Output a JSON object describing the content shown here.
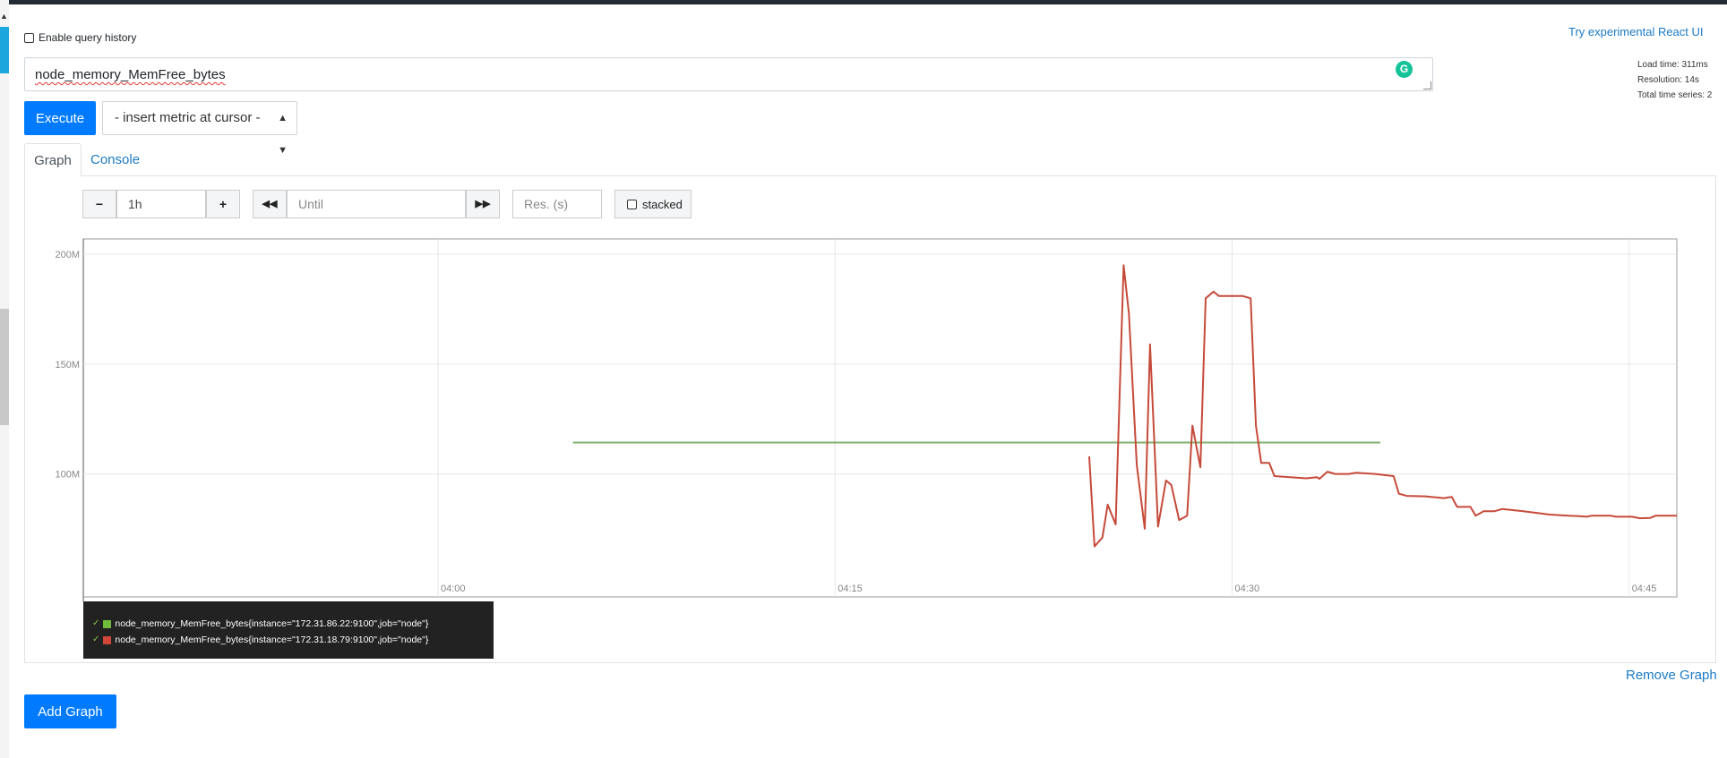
{
  "query_history": {
    "label": "Enable query history",
    "checked": false
  },
  "react_ui_link": "Try experimental React UI",
  "stats": {
    "load_time": "Load time: 311ms",
    "resolution": "Resolution: 14s",
    "total_series": "Total time series: 2"
  },
  "query": {
    "expression": "node_memory_MemFree_bytes"
  },
  "execute_label": "Execute",
  "metric_select": {
    "selected": "- insert metric at cursor -"
  },
  "tabs": [
    {
      "label": "Graph",
      "active": true
    },
    {
      "label": "Console",
      "active": false
    }
  ],
  "controls": {
    "range_value": "1h",
    "until_placeholder": "Until",
    "resolution_placeholder": "Res. (s)",
    "stacked_label": "stacked",
    "stacked_checked": false
  },
  "chart_data": {
    "type": "line",
    "y_ticks": [
      {
        "value": 100,
        "label": "100M"
      },
      {
        "value": 150,
        "label": "150M"
      },
      {
        "value": 200,
        "label": "200M"
      }
    ],
    "x_ticks": [
      {
        "minute": 0,
        "label": "04:00"
      },
      {
        "minute": 15,
        "label": "04:15"
      },
      {
        "minute": 30,
        "label": "04:30"
      },
      {
        "minute": 45,
        "label": "04:45"
      }
    ],
    "xlim": [
      -13.4,
      46.8
    ],
    "ylim": [
      44,
      207
    ],
    "grid": true,
    "series": [
      {
        "name": "node_memory_MemFree_bytes{instance=\"172.31.86.22:9100\",job=\"node\"}",
        "color": "#7eb26d",
        "points": [
          [
            5.1,
            114.3
          ],
          [
            35.6,
            114.3
          ]
        ]
      },
      {
        "name": "node_memory_MemFree_bytes{instance=\"172.31.18.79:9100\",job=\"node\"}",
        "color": "#c64a3a",
        "points": [
          [
            24.6,
            108
          ],
          [
            24.8,
            67
          ],
          [
            25.1,
            71
          ],
          [
            25.3,
            86
          ],
          [
            25.6,
            77
          ],
          [
            25.9,
            195
          ],
          [
            26.1,
            173
          ],
          [
            26.4,
            104
          ],
          [
            26.7,
            75
          ],
          [
            26.9,
            159
          ],
          [
            27.2,
            76
          ],
          [
            27.5,
            97
          ],
          [
            27.7,
            95
          ],
          [
            28.0,
            79
          ],
          [
            28.3,
            81
          ],
          [
            28.5,
            122
          ],
          [
            28.8,
            103
          ],
          [
            29.0,
            180
          ],
          [
            29.3,
            183
          ],
          [
            29.5,
            181
          ],
          [
            29.8,
            181
          ],
          [
            30.4,
            181
          ],
          [
            30.7,
            180
          ],
          [
            30.9,
            122
          ],
          [
            31.1,
            105
          ],
          [
            31.4,
            105
          ],
          [
            31.6,
            99
          ],
          [
            32.2,
            98.5
          ],
          [
            32.8,
            98
          ],
          [
            33.2,
            98.5
          ],
          [
            33.3,
            97.8
          ],
          [
            33.6,
            101
          ],
          [
            33.9,
            100
          ],
          [
            34.4,
            100
          ],
          [
            34.7,
            100.5
          ],
          [
            35.4,
            100
          ],
          [
            36.1,
            99
          ],
          [
            36.3,
            91
          ],
          [
            36.6,
            90
          ],
          [
            37.3,
            89.8
          ],
          [
            38.0,
            89
          ],
          [
            38.3,
            89.5
          ],
          [
            38.5,
            85
          ],
          [
            39.0,
            85
          ],
          [
            39.2,
            81
          ],
          [
            39.5,
            83
          ],
          [
            39.9,
            83
          ],
          [
            40.2,
            84
          ],
          [
            41.0,
            83
          ],
          [
            42.0,
            81.5
          ],
          [
            42.7,
            81
          ],
          [
            43.1,
            80.8
          ],
          [
            43.4,
            80.5
          ],
          [
            43.6,
            81
          ],
          [
            44.3,
            81
          ],
          [
            44.5,
            80.5
          ],
          [
            45.1,
            80.5
          ],
          [
            45.4,
            79.8
          ],
          [
            45.8,
            80
          ],
          [
            46.0,
            81
          ],
          [
            46.8,
            81
          ]
        ]
      }
    ]
  },
  "legend": [
    {
      "label": "node_memory_MemFree_bytes{instance=\"172.31.86.22:9100\",job=\"node\"}",
      "color": "#6fbb3a"
    },
    {
      "label": "node_memory_MemFree_bytes{instance=\"172.31.18.79:9100\",job=\"node\"}",
      "color": "#d0473a"
    }
  ],
  "remove_graph_label": "Remove Graph",
  "add_graph_label": "Add Graph"
}
